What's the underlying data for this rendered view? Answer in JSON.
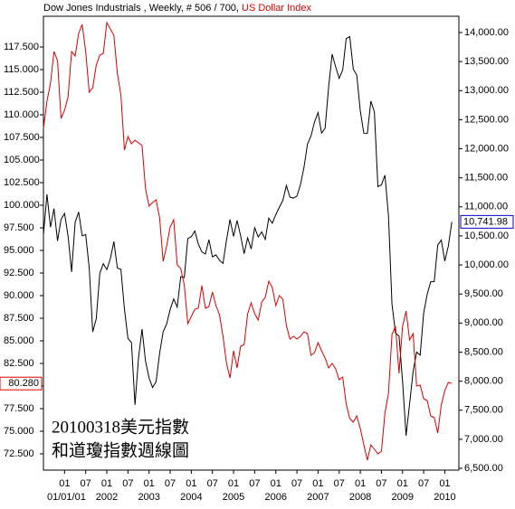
{
  "chart_data": {
    "type": "line",
    "title_detail": ", Weekly, # 506 / 700,",
    "annotations": [
      "20100318美元指數",
      "和道瓊指數週線圖"
    ],
    "x": [
      "2000-07",
      "2000-08",
      "2000-09",
      "2000-10",
      "2000-11",
      "2000-12",
      "2001-01",
      "2001-02",
      "2001-03",
      "2001-04",
      "2001-05",
      "2001-06",
      "2001-07",
      "2001-08",
      "2001-09",
      "2001-10",
      "2001-11",
      "2001-12",
      "2002-01",
      "2002-02",
      "2002-03",
      "2002-04",
      "2002-05",
      "2002-06",
      "2002-07",
      "2002-08",
      "2002-09",
      "2002-10",
      "2002-11",
      "2002-12",
      "2003-01",
      "2003-02",
      "2003-03",
      "2003-04",
      "2003-05",
      "2003-06",
      "2003-07",
      "2003-08",
      "2003-09",
      "2003-10",
      "2003-11",
      "2003-12",
      "2004-01",
      "2004-02",
      "2004-03",
      "2004-04",
      "2004-05",
      "2004-06",
      "2004-07",
      "2004-08",
      "2004-09",
      "2004-10",
      "2004-11",
      "2004-12",
      "2005-01",
      "2005-02",
      "2005-03",
      "2005-04",
      "2005-05",
      "2005-06",
      "2005-07",
      "2005-08",
      "2005-09",
      "2005-10",
      "2005-11",
      "2005-12",
      "2006-01",
      "2006-02",
      "2006-03",
      "2006-04",
      "2006-05",
      "2006-06",
      "2006-07",
      "2006-08",
      "2006-09",
      "2006-10",
      "2006-11",
      "2006-12",
      "2007-01",
      "2007-02",
      "2007-03",
      "2007-04",
      "2007-05",
      "2007-06",
      "2007-07",
      "2007-08",
      "2007-09",
      "2007-10",
      "2007-11",
      "2007-12",
      "2008-01",
      "2008-02",
      "2008-03",
      "2008-04",
      "2008-05",
      "2008-06",
      "2008-07",
      "2008-08",
      "2008-09",
      "2008-10",
      "2008-11",
      "2008-12",
      "2009-01",
      "2009-02",
      "2009-03",
      "2009-04",
      "2009-05",
      "2009-06",
      "2009-07",
      "2009-08",
      "2009-09",
      "2009-10",
      "2009-11",
      "2009-12",
      "2010-01",
      "2010-02",
      "2010-03"
    ],
    "xlim": [
      "2000-07",
      "2010-05"
    ],
    "xticks": [
      {
        "value": "2001-01",
        "label": "01"
      },
      {
        "value": "2001-07",
        "label": "07"
      },
      {
        "value": "2002-01",
        "label": "01"
      },
      {
        "value": "2002-07",
        "label": "07"
      },
      {
        "value": "2003-01",
        "label": "01"
      },
      {
        "value": "2003-07",
        "label": "07"
      },
      {
        "value": "2004-01",
        "label": "01"
      },
      {
        "value": "2004-07",
        "label": "07"
      },
      {
        "value": "2005-01",
        "label": "01"
      },
      {
        "value": "2005-07",
        "label": "07"
      },
      {
        "value": "2006-01",
        "label": "01"
      },
      {
        "value": "2006-07",
        "label": "07"
      },
      {
        "value": "2007-01",
        "label": "01"
      },
      {
        "value": "2007-07",
        "label": "07"
      },
      {
        "value": "2008-01",
        "label": "01"
      },
      {
        "value": "2008-07",
        "label": "07"
      },
      {
        "value": "2009-01",
        "label": "01"
      },
      {
        "value": "2009-07",
        "label": "07"
      },
      {
        "value": "2010-01",
        "label": "01"
      }
    ],
    "year_labels": [
      {
        "value": "2001-01",
        "label": "01/01/01"
      },
      {
        "value": "2002-01",
        "label": "2002"
      },
      {
        "value": "2003-01",
        "label": "2003"
      },
      {
        "value": "2004-01",
        "label": "2004"
      },
      {
        "value": "2005-01",
        "label": "2005"
      },
      {
        "value": "2006-01",
        "label": "2006"
      },
      {
        "value": "2007-01",
        "label": "2007"
      },
      {
        "value": "2008-01",
        "label": "2008"
      },
      {
        "value": "2009-01",
        "label": "2009"
      },
      {
        "value": "2010-01",
        "label": "2010"
      }
    ],
    "ylim": [
      70.7,
      120.9
    ],
    "yticks": [
      {
        "value": 72.5,
        "label": "72.500"
      },
      {
        "value": 75,
        "label": "75.000"
      },
      {
        "value": 77.5,
        "label": "77.500"
      },
      {
        "value": 80,
        "label": "80.000"
      },
      {
        "value": 82.5,
        "label": "82.500"
      },
      {
        "value": 85,
        "label": "85.000"
      },
      {
        "value": 87.5,
        "label": "87.500"
      },
      {
        "value": 90,
        "label": "90.000"
      },
      {
        "value": 92.5,
        "label": "92.500"
      },
      {
        "value": 95,
        "label": "95.000"
      },
      {
        "value": 97.5,
        "label": "97.500"
      },
      {
        "value": 100,
        "label": "100.000"
      },
      {
        "value": 102.5,
        "label": "102.500"
      },
      {
        "value": 105,
        "label": "105.000"
      },
      {
        "value": 107.5,
        "label": "107.500"
      },
      {
        "value": 110,
        "label": "110.000"
      },
      {
        "value": 112.5,
        "label": "112.500"
      },
      {
        "value": 115,
        "label": "115.000"
      },
      {
        "value": 117.5,
        "label": "117.500"
      }
    ],
    "y2lim": [
      6469,
      14280
    ],
    "y2ticks": [
      {
        "value": 6500,
        "label": "6,500.00"
      },
      {
        "value": 7000,
        "label": "7,000.00"
      },
      {
        "value": 7500,
        "label": "7,500.00"
      },
      {
        "value": 8000,
        "label": "8,000.00"
      },
      {
        "value": 8500,
        "label": "8,500.00"
      },
      {
        "value": 9000,
        "label": "9,000.00"
      },
      {
        "value": 9500,
        "label": "9,500.00"
      },
      {
        "value": 10000,
        "label": "10,000.00"
      },
      {
        "value": 10500,
        "label": "10,500.00"
      },
      {
        "value": 11000,
        "label": "11,000.00"
      },
      {
        "value": 11500,
        "label": "11,500.00"
      },
      {
        "value": 12000,
        "label": "12,000.00"
      },
      {
        "value": 12500,
        "label": "12,500.00"
      },
      {
        "value": 13000,
        "label": "13,000.00"
      },
      {
        "value": 13500,
        "label": "13,500.00"
      },
      {
        "value": 14000,
        "label": "14,000.00"
      }
    ],
    "series": [
      {
        "name": "Dow Jones Industrials",
        "color": "#000000",
        "axis": "y2",
        "last_label": "10,741.98",
        "label_color": "#0000cc",
        "values": [
          10522,
          11215,
          10651,
          10971,
          10414,
          10787,
          10887,
          10495,
          9879,
          10735,
          10912,
          10502,
          10523,
          9950,
          8848,
          9075,
          9852,
          10021,
          9920,
          10106,
          10404,
          9946,
          9925,
          9243,
          8737,
          8664,
          7592,
          8397,
          8896,
          8342,
          8054,
          7891,
          7992,
          8480,
          8850,
          8985,
          9234,
          9416,
          9275,
          9801,
          9782,
          10454,
          10488,
          10584,
          10358,
          10226,
          10188,
          10435,
          10140,
          10174,
          10080,
          10027,
          10428,
          10783,
          10490,
          10766,
          10504,
          10193,
          10467,
          10275,
          10641,
          10482,
          10569,
          10440,
          10806,
          10718,
          10865,
          10993,
          11109,
          11367,
          11168,
          11150,
          11186,
          11381,
          11679,
          12081,
          12221,
          12463,
          12622,
          12269,
          12354,
          13063,
          13628,
          13409,
          13212,
          13358,
          13896,
          13930,
          13372,
          13265,
          12650,
          12266,
          12263,
          12820,
          12638,
          11350,
          11378,
          11544,
          10851,
          9325,
          8829,
          8776,
          8001,
          7063,
          7609,
          8168,
          8500,
          8447,
          9172,
          9496,
          9712,
          9713,
          10345,
          10428,
          10067,
          10325,
          10741.98
        ]
      },
      {
        "name": "US Dollar Index",
        "color": "#dd0000",
        "axis": "y",
        "last_label": "80.280",
        "label_color": "#dd0000",
        "values": [
          108.5,
          111.5,
          113.5,
          117,
          116,
          109.6,
          110.5,
          112,
          117,
          116.5,
          119,
          120,
          117,
          112.5,
          113,
          115.5,
          116.6,
          116.8,
          120.2,
          119.5,
          118.8,
          114.6,
          112.2,
          106.1,
          107.6,
          106.8,
          107.2,
          106.9,
          106.6,
          101.8,
          99.9,
          100.3,
          100.6,
          98.6,
          93.8,
          95.5,
          97.6,
          98.4,
          93.4,
          93,
          91.2,
          86.9,
          87.7,
          88.5,
          88.6,
          91.1,
          88.6,
          88.8,
          90.4,
          88.9,
          87.9,
          85.5,
          82.5,
          80.9,
          83.9,
          82,
          84.4,
          84.6,
          88,
          89.2,
          88,
          87.3,
          89.3,
          89.8,
          91.6,
          90.9,
          88.9,
          90,
          89.6,
          86.7,
          85.2,
          85.5,
          85.2,
          85.5,
          86,
          85.8,
          83.4,
          83.7,
          84.8,
          83.9,
          83.1,
          82,
          82.5,
          81.9,
          80.7,
          81,
          78,
          76.4,
          76,
          76.7,
          75.3,
          73.5,
          71.8,
          73.5,
          73,
          72.5,
          72.8,
          77,
          79.2,
          85.7,
          86.6,
          81.4,
          86.6,
          88.3,
          85.1,
          85.8,
          80,
          80.1,
          78.6,
          78.4,
          76.7,
          76.5,
          74.8,
          77.9,
          79.5,
          80.4,
          80.28
        ]
      }
    ]
  }
}
